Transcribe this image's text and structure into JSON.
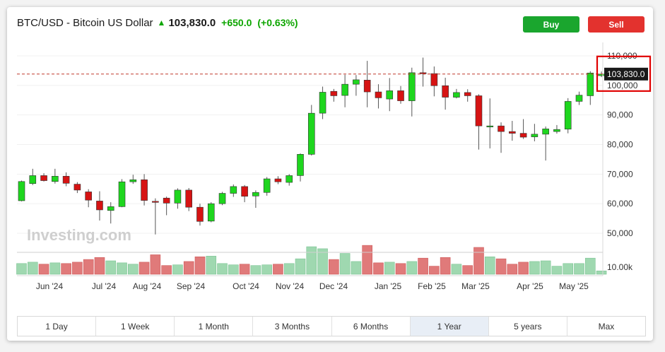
{
  "header": {
    "title": "BTC/USD - Bitcoin US Dollar",
    "up_icon": "up-arrow-icon",
    "price": "103,830.0",
    "change": "+650.0",
    "change_pct": "(+0.63%)"
  },
  "buttons": {
    "buy": "Buy",
    "sell": "Sell"
  },
  "watermark": "Investing.com",
  "tabs": [
    {
      "label": "1 Day"
    },
    {
      "label": "1 Week"
    },
    {
      "label": "1 Month"
    },
    {
      "label": "3 Months"
    },
    {
      "label": "6 Months"
    },
    {
      "label": "1 Year",
      "active": true
    },
    {
      "label": "5 years"
    },
    {
      "label": "Max"
    }
  ],
  "colors": {
    "up": "#1ed61e",
    "down": "#d61313",
    "vol_up": "#9fd8b0",
    "vol_down": "#e07a7a",
    "highlight": "#e00000",
    "current_line": "#c0392b",
    "buy": "#1aa62e",
    "sell": "#e3322e"
  },
  "chart_data": {
    "type": "candlestick",
    "interval": "weekly",
    "y_tick_labels": [
      "50,000",
      "60,000",
      "70,000",
      "80,000",
      "90,000",
      "100,000",
      "110,000"
    ],
    "y_range": [
      45000,
      112000
    ],
    "volume_tick_label": "10.00k",
    "x_tick_labels": [
      "Jun '24",
      "Jul '24",
      "Aug '24",
      "Sep '24",
      "Oct '24",
      "Nov '24",
      "Dec '24",
      "Jan '25",
      "Feb '25",
      "Mar '25",
      "Apr '25",
      "May '25"
    ],
    "current_price": 103830,
    "current_price_label": "103,830.0",
    "candles": [
      {
        "o": 61000,
        "h": 67800,
        "l": 60800,
        "c": 67500,
        "v": 1.6
      },
      {
        "o": 66800,
        "h": 71800,
        "l": 66300,
        "c": 69500,
        "v": 1.8
      },
      {
        "o": 69500,
        "h": 70300,
        "l": 67500,
        "c": 67800,
        "v": 1.5
      },
      {
        "o": 67500,
        "h": 71800,
        "l": 66800,
        "c": 69300,
        "v": 1.7
      },
      {
        "o": 69300,
        "h": 70600,
        "l": 65900,
        "c": 66900,
        "v": 1.6
      },
      {
        "o": 66600,
        "h": 67300,
        "l": 63600,
        "c": 64600,
        "v": 1.8
      },
      {
        "o": 64000,
        "h": 64900,
        "l": 58800,
        "c": 61200,
        "v": 2.2
      },
      {
        "o": 60900,
        "h": 64200,
        "l": 54300,
        "c": 57900,
        "v": 2.5
      },
      {
        "o": 57700,
        "h": 60500,
        "l": 53300,
        "c": 59000,
        "v": 2.0
      },
      {
        "o": 59000,
        "h": 68300,
        "l": 58800,
        "c": 67400,
        "v": 1.7
      },
      {
        "o": 67400,
        "h": 69800,
        "l": 66700,
        "c": 68100,
        "v": 1.5
      },
      {
        "o": 68100,
        "h": 70000,
        "l": 59400,
        "c": 61100,
        "v": 1.8
      },
      {
        "o": 60800,
        "h": 61800,
        "l": 49600,
        "c": 60600,
        "v": 2.9
      },
      {
        "o": 61900,
        "h": 62400,
        "l": 56100,
        "c": 60200,
        "v": 1.3
      },
      {
        "o": 60200,
        "h": 65200,
        "l": 58300,
        "c": 64600,
        "v": 1.4
      },
      {
        "o": 64600,
        "h": 65300,
        "l": 57500,
        "c": 58800,
        "v": 1.9
      },
      {
        "o": 58800,
        "h": 60000,
        "l": 52600,
        "c": 54000,
        "v": 2.6
      },
      {
        "o": 54100,
        "h": 60500,
        "l": 53700,
        "c": 60000,
        "v": 2.7
      },
      {
        "o": 60000,
        "h": 64000,
        "l": 59500,
        "c": 63500,
        "v": 1.6
      },
      {
        "o": 63500,
        "h": 66500,
        "l": 62300,
        "c": 65800,
        "v": 1.4
      },
      {
        "o": 65800,
        "h": 66300,
        "l": 60500,
        "c": 62500,
        "v": 1.5
      },
      {
        "o": 62600,
        "h": 64500,
        "l": 58600,
        "c": 63800,
        "v": 1.3
      },
      {
        "o": 63800,
        "h": 69000,
        "l": 62700,
        "c": 68400,
        "v": 1.4
      },
      {
        "o": 68400,
        "h": 69300,
        "l": 66600,
        "c": 67400,
        "v": 1.5
      },
      {
        "o": 67200,
        "h": 70000,
        "l": 66100,
        "c": 69500,
        "v": 1.6
      },
      {
        "o": 69500,
        "h": 77000,
        "l": 67500,
        "c": 76700,
        "v": 2.3
      },
      {
        "o": 76700,
        "h": 93400,
        "l": 76300,
        "c": 90600,
        "v": 4.1
      },
      {
        "o": 90600,
        "h": 99600,
        "l": 88600,
        "c": 97700,
        "v": 3.8
      },
      {
        "o": 98000,
        "h": 98800,
        "l": 94500,
        "c": 96500,
        "v": 2.2
      },
      {
        "o": 96600,
        "h": 103600,
        "l": 92600,
        "c": 100400,
        "v": 3.1
      },
      {
        "o": 100400,
        "h": 103500,
        "l": 96500,
        "c": 101900,
        "v": 1.9
      },
      {
        "o": 101800,
        "h": 108300,
        "l": 92600,
        "c": 97800,
        "v": 4.3
      },
      {
        "o": 97800,
        "h": 100400,
        "l": 92200,
        "c": 95800,
        "v": 1.7
      },
      {
        "o": 95400,
        "h": 102500,
        "l": 91300,
        "c": 98200,
        "v": 1.8
      },
      {
        "o": 98200,
        "h": 99800,
        "l": 93800,
        "c": 94800,
        "v": 1.6
      },
      {
        "o": 94800,
        "h": 106000,
        "l": 89500,
        "c": 104300,
        "v": 1.9
      },
      {
        "o": 104300,
        "h": 109400,
        "l": 99600,
        "c": 104000,
        "v": 2.4
      },
      {
        "o": 104000,
        "h": 106400,
        "l": 96300,
        "c": 99900,
        "v": 1.2
      },
      {
        "o": 99900,
        "h": 102600,
        "l": 91800,
        "c": 96000,
        "v": 2.5
      },
      {
        "o": 96000,
        "h": 98800,
        "l": 95600,
        "c": 97600,
        "v": 1.5
      },
      {
        "o": 97600,
        "h": 98700,
        "l": 94500,
        "c": 96500,
        "v": 1.3
      },
      {
        "o": 96500,
        "h": 97000,
        "l": 78300,
        "c": 86300,
        "v": 4.0
      },
      {
        "o": 86300,
        "h": 95600,
        "l": 78700,
        "c": 86300,
        "v": 2.6
      },
      {
        "o": 86300,
        "h": 87500,
        "l": 77200,
        "c": 84400,
        "v": 2.3
      },
      {
        "o": 84400,
        "h": 88000,
        "l": 81300,
        "c": 83800,
        "v": 1.5
      },
      {
        "o": 83800,
        "h": 88600,
        "l": 81900,
        "c": 82500,
        "v": 1.8
      },
      {
        "o": 82600,
        "h": 87000,
        "l": 81100,
        "c": 83500,
        "v": 1.9
      },
      {
        "o": 83500,
        "h": 86100,
        "l": 74600,
        "c": 85300,
        "v": 2.0
      },
      {
        "o": 84400,
        "h": 86600,
        "l": 83700,
        "c": 85100,
        "v": 1.2
      },
      {
        "o": 85200,
        "h": 95700,
        "l": 83800,
        "c": 94600,
        "v": 1.6
      },
      {
        "o": 94600,
        "h": 97900,
        "l": 93400,
        "c": 96700,
        "v": 1.6
      },
      {
        "o": 96500,
        "h": 104800,
        "l": 93400,
        "c": 104200,
        "v": 2.4
      },
      {
        "o": 103300,
        "h": 104700,
        "l": 102800,
        "c": 103830,
        "v": 0.5
      }
    ]
  }
}
